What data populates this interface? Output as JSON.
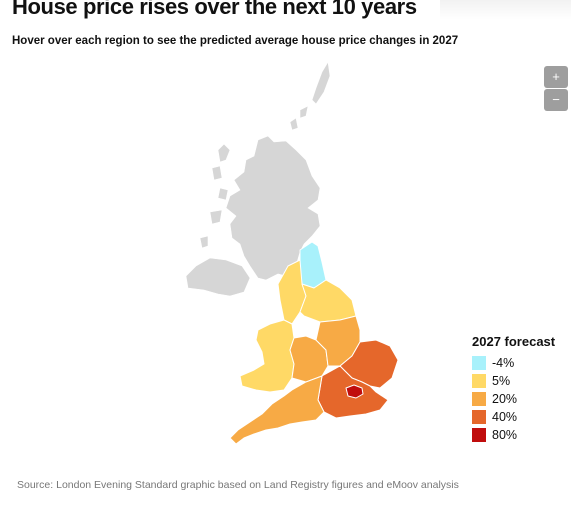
{
  "title": "House price rises over the next 10 years",
  "subtitle": "Hover over each region to see the predicted average house price changes in 2027",
  "zoom": {
    "in_label": "+",
    "out_label": "−"
  },
  "legend": {
    "title": "2027 forecast",
    "items": [
      {
        "label": "-4%",
        "color": "#a8f1fb"
      },
      {
        "label": "5%",
        "color": "#ffd966"
      },
      {
        "label": "20%",
        "color": "#f7aa45"
      },
      {
        "label": "40%",
        "color": "#e5672b"
      },
      {
        "label": "80%",
        "color": "#c00d0d"
      }
    ]
  },
  "source": "Source: London Evening Standard graphic based on Land Registry figures and eMoov analysis",
  "colors": {
    "no_data": "#d6d6d6",
    "minus4": "#a8f1fb",
    "p5": "#ffd966",
    "p20": "#f7aa45",
    "p40": "#e5672b",
    "p80": "#c00d0d"
  }
}
